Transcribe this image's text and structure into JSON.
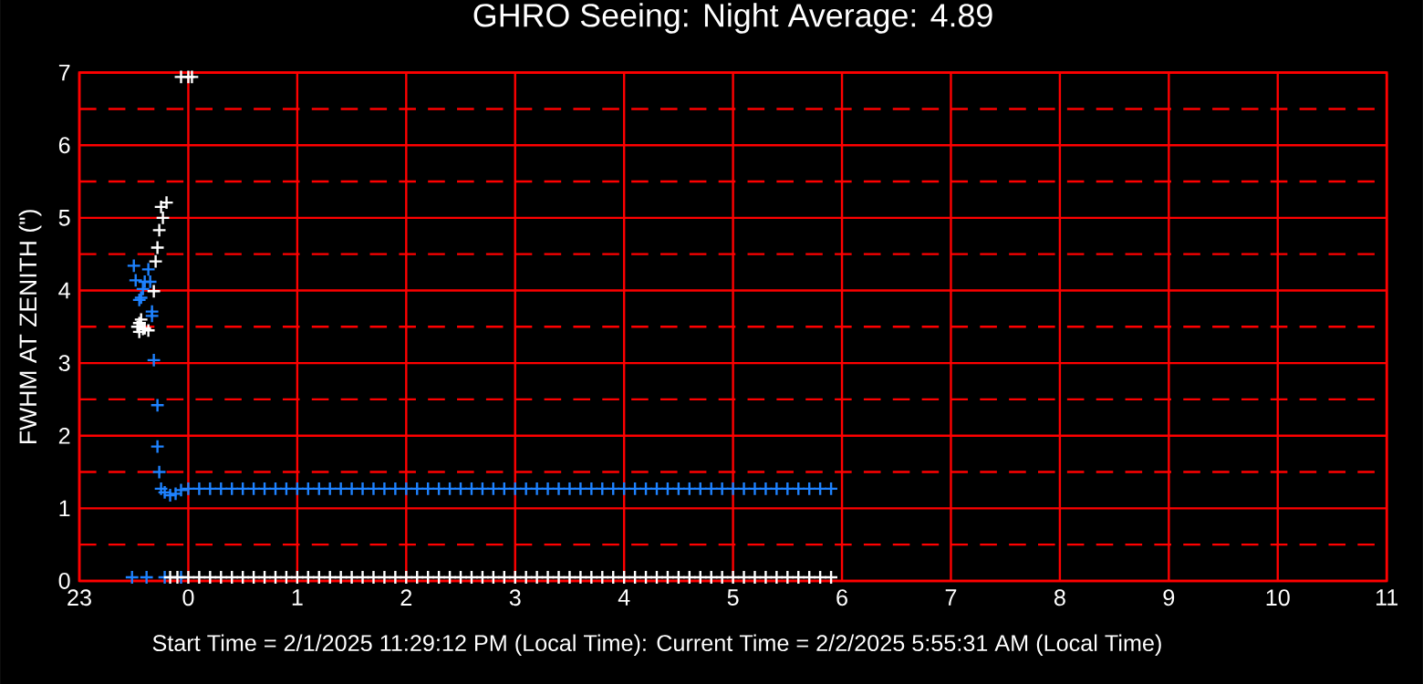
{
  "chart_data": {
    "type": "scatter",
    "title": "GHRO Seeing: Night Average: 4.89",
    "ylabel": "FWHM AT ZENITH (\")",
    "annotations": [
      "Start Time = 2/1/2025 11:29:12 PM (Local Time): Current Time = 2/2/2025 5:55:31 AM (Local Time)"
    ],
    "xlim": [
      "2025-02-01T23:00",
      "2025-02-02T11:00"
    ],
    "xticks": [
      {
        "value": "2025-02-01T23:00",
        "label": "23"
      },
      {
        "value": "2025-02-02T00:00",
        "label": "0"
      },
      {
        "value": "2025-02-02T01:00",
        "label": "1"
      },
      {
        "value": "2025-02-02T02:00",
        "label": "2"
      },
      {
        "value": "2025-02-02T03:00",
        "label": "3"
      },
      {
        "value": "2025-02-02T04:00",
        "label": "4"
      },
      {
        "value": "2025-02-02T05:00",
        "label": "5"
      },
      {
        "value": "2025-02-02T06:00",
        "label": "6"
      },
      {
        "value": "2025-02-02T07:00",
        "label": "7"
      },
      {
        "value": "2025-02-02T08:00",
        "label": "8"
      },
      {
        "value": "2025-02-02T09:00",
        "label": "9"
      },
      {
        "value": "2025-02-02T10:00",
        "label": "10"
      },
      {
        "value": "2025-02-02T11:00",
        "label": "11"
      }
    ],
    "ylim": [
      0,
      7
    ],
    "yticks": [
      0,
      {
        "value": 0.5,
        "label": null
      },
      1,
      {
        "value": 1.5,
        "label": null
      },
      2,
      {
        "value": 2.5,
        "label": null
      },
      3,
      {
        "value": 3.5,
        "label": null
      },
      4,
      {
        "value": 4.5,
        "label": null
      },
      5,
      {
        "value": 5.5,
        "label": null
      },
      6,
      {
        "value": 6.5,
        "label": null
      },
      7
    ],
    "grid": true,
    "marker": "cross",
    "series": [
      {
        "color": "#1e82ff",
        "x": [
          "2025-02-01T23:30",
          "2025-02-01T23:38",
          "2025-02-01T23:31",
          "2025-02-01T23:36",
          "2025-02-01T23:39",
          "2025-02-01T23:35",
          "2025-02-01T23:34",
          "2025-02-01T23:33",
          "2025-02-01T23:40",
          "2025-02-01T23:40",
          "2025-02-01T23:41",
          "2025-02-01T23:43",
          "2025-02-01T23:43",
          "2025-02-01T23:44",
          "2025-02-01T23:45",
          "2025-02-01T23:47",
          "2025-02-01T23:50",
          "2025-02-01T23:53",
          "2025-02-01T23:56",
          "2025-02-01T23:29",
          "2025-02-01T23:37",
          "2025-02-01T23:47",
          "2025-02-01T23:56",
          "2025-02-02T00:00",
          "2025-02-02T00:06",
          "2025-02-02T00:12",
          "2025-02-02T00:18",
          "2025-02-02T00:24",
          "2025-02-02T00:30",
          "2025-02-02T00:36",
          "2025-02-02T00:42",
          "2025-02-02T00:48",
          "2025-02-02T00:54",
          "2025-02-02T01:00",
          "2025-02-02T01:06",
          "2025-02-02T01:12",
          "2025-02-02T01:18",
          "2025-02-02T01:24",
          "2025-02-02T01:30",
          "2025-02-02T01:36",
          "2025-02-02T01:42",
          "2025-02-02T01:48",
          "2025-02-02T01:54",
          "2025-02-02T02:00",
          "2025-02-02T02:06",
          "2025-02-02T02:12",
          "2025-02-02T02:18",
          "2025-02-02T02:24",
          "2025-02-02T02:30",
          "2025-02-02T02:36",
          "2025-02-02T02:42",
          "2025-02-02T02:48",
          "2025-02-02T02:54",
          "2025-02-02T03:00",
          "2025-02-02T03:06",
          "2025-02-02T03:12",
          "2025-02-02T03:18",
          "2025-02-02T03:24",
          "2025-02-02T03:30",
          "2025-02-02T03:36",
          "2025-02-02T03:42",
          "2025-02-02T03:48",
          "2025-02-02T03:54",
          "2025-02-02T04:00",
          "2025-02-02T04:06",
          "2025-02-02T04:12",
          "2025-02-02T04:18",
          "2025-02-02T04:24",
          "2025-02-02T04:30",
          "2025-02-02T04:36",
          "2025-02-02T04:42",
          "2025-02-02T04:48",
          "2025-02-02T04:54",
          "2025-02-02T05:00",
          "2025-02-02T05:06",
          "2025-02-02T05:12",
          "2025-02-02T05:18",
          "2025-02-02T05:24",
          "2025-02-02T05:30",
          "2025-02-02T05:36",
          "2025-02-02T05:42",
          "2025-02-02T05:48",
          "2025-02-02T05:54"
        ],
        "values": [
          4.34,
          4.29,
          4.14,
          4.12,
          4.12,
          4.02,
          3.9,
          3.87,
          3.71,
          3.65,
          3.04,
          2.42,
          1.85,
          1.5,
          1.27,
          1.22,
          1.18,
          1.2,
          1.25,
          0.05,
          0.05,
          0.05,
          0.05,
          1.27,
          1.27,
          1.27,
          1.27,
          1.27,
          1.27,
          1.27,
          1.27,
          1.27,
          1.27,
          1.27,
          1.27,
          1.27,
          1.27,
          1.27,
          1.27,
          1.27,
          1.27,
          1.27,
          1.27,
          1.27,
          1.27,
          1.27,
          1.27,
          1.27,
          1.27,
          1.27,
          1.27,
          1.27,
          1.27,
          1.27,
          1.27,
          1.27,
          1.27,
          1.27,
          1.27,
          1.27,
          1.27,
          1.27,
          1.27,
          1.27,
          1.27,
          1.27,
          1.27,
          1.27,
          1.27,
          1.27,
          1.27,
          1.27,
          1.27,
          1.27,
          1.27,
          1.27,
          1.27,
          1.27,
          1.27,
          1.27,
          1.27,
          1.27,
          1.27
        ]
      },
      {
        "color": "#ffffff",
        "x": [
          "2025-02-01T23:48",
          "2025-02-01T23:45",
          "2025-02-01T23:46",
          "2025-02-01T23:44",
          "2025-02-01T23:43",
          "2025-02-01T23:42",
          "2025-02-01T23:41",
          "2025-02-01T23:33",
          "2025-02-01T23:34",
          "2025-02-01T23:32",
          "2025-02-01T23:36",
          "2025-02-01T23:38",
          "2025-02-01T23:33",
          "2025-02-01T23:35",
          "2025-02-01T23:56",
          "2025-02-02T00:00",
          "2025-02-02T00:02",
          "2025-02-01T23:50",
          "2025-02-01T23:54",
          "2025-02-02T00:00",
          "2025-02-02T00:06",
          "2025-02-02T00:12",
          "2025-02-02T00:18",
          "2025-02-02T00:24",
          "2025-02-02T00:30",
          "2025-02-02T00:36",
          "2025-02-02T00:42",
          "2025-02-02T00:48",
          "2025-02-02T00:54",
          "2025-02-02T01:00",
          "2025-02-02T01:06",
          "2025-02-02T01:12",
          "2025-02-02T01:18",
          "2025-02-02T01:24",
          "2025-02-02T01:30",
          "2025-02-02T01:36",
          "2025-02-02T01:42",
          "2025-02-02T01:48",
          "2025-02-02T01:54",
          "2025-02-02T02:00",
          "2025-02-02T02:06",
          "2025-02-02T02:12",
          "2025-02-02T02:18",
          "2025-02-02T02:24",
          "2025-02-02T02:30",
          "2025-02-02T02:36",
          "2025-02-02T02:42",
          "2025-02-02T02:48",
          "2025-02-02T02:54",
          "2025-02-02T03:00",
          "2025-02-02T03:06",
          "2025-02-02T03:12",
          "2025-02-02T03:18",
          "2025-02-02T03:24",
          "2025-02-02T03:30",
          "2025-02-02T03:36",
          "2025-02-02T03:42",
          "2025-02-02T03:48",
          "2025-02-02T03:54",
          "2025-02-02T04:00",
          "2025-02-02T04:06",
          "2025-02-02T04:12",
          "2025-02-02T04:18",
          "2025-02-02T04:24",
          "2025-02-02T04:30",
          "2025-02-02T04:36",
          "2025-02-02T04:42",
          "2025-02-02T04:48",
          "2025-02-02T04:54",
          "2025-02-02T05:00",
          "2025-02-02T05:06",
          "2025-02-02T05:12",
          "2025-02-02T05:18",
          "2025-02-02T05:24",
          "2025-02-02T05:30",
          "2025-02-02T05:36",
          "2025-02-02T05:42",
          "2025-02-02T05:48",
          "2025-02-02T05:54"
        ],
        "values": [
          5.21,
          5.15,
          5.0,
          4.83,
          4.59,
          4.4,
          3.99,
          3.55,
          3.6,
          3.5,
          3.48,
          3.45,
          3.43,
          3.47,
          6.94,
          6.94,
          6.94,
          0.05,
          0.05,
          0.05,
          0.05,
          0.05,
          0.05,
          0.05,
          0.05,
          0.05,
          0.05,
          0.05,
          0.05,
          0.05,
          0.05,
          0.05,
          0.05,
          0.05,
          0.05,
          0.05,
          0.05,
          0.05,
          0.05,
          0.05,
          0.05,
          0.05,
          0.05,
          0.05,
          0.05,
          0.05,
          0.05,
          0.05,
          0.05,
          0.05,
          0.05,
          0.05,
          0.05,
          0.05,
          0.05,
          0.05,
          0.05,
          0.05,
          0.05,
          0.05,
          0.05,
          0.05,
          0.05,
          0.05,
          0.05,
          0.05,
          0.05,
          0.05,
          0.05,
          0.05,
          0.05,
          0.05,
          0.05,
          0.05,
          0.05,
          0.05,
          0.05,
          0.05,
          0.05
        ]
      }
    ]
  }
}
